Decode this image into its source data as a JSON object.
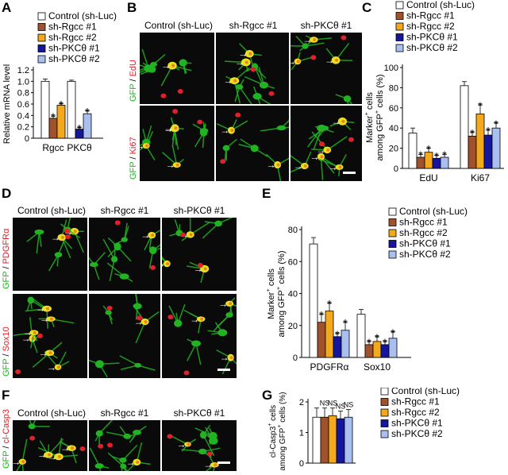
{
  "panel_letters": {
    "A": "A",
    "B": "B",
    "C": "C",
    "D": "D",
    "E": "E",
    "F": "F",
    "G": "G"
  },
  "colors": {
    "control": "#ffffff",
    "rgcc1": "#a0522d",
    "rgcc2": "#f4a81c",
    "pkc1": "#16169c",
    "pkc2": "#a8bff0",
    "gfp": "#22b322",
    "red": "#e0202a"
  },
  "legend": [
    "Control (sh-Luc)",
    "sh-Rgcc #1",
    "sh-Rgcc #2",
    "sh-PKCθ #1",
    "sh-PKCθ #2"
  ],
  "micrograph_titles": {
    "control": "Control (sh-Luc)",
    "rgcc1": "sh-Rgcc #1",
    "pkc1": "sh-PKCθ #1"
  },
  "row_labels": {
    "b_top": {
      "gfp": "GFP",
      "sep": " / ",
      "marker": "EdU"
    },
    "b_bottom": {
      "gfp": "GFP",
      "sep": " / ",
      "marker": "Ki67"
    },
    "d_top": {
      "gfp": "GFP",
      "sep": " / ",
      "marker": "PDGFRα"
    },
    "d_bottom": {
      "gfp": "GFP",
      "sep": " / ",
      "marker": "Sox10"
    },
    "f": {
      "gfp": "GFP",
      "sep": " / ",
      "marker": "cl-Casp3"
    }
  },
  "chart_data": [
    {
      "panel": "A",
      "type": "bar",
      "categories": [
        "Rgcc",
        "PKCθ"
      ],
      "ylabel": "Relative mRNA level",
      "ylim": [
        0,
        1.2
      ],
      "yticks": [
        "0",
        "0.2",
        "0.4",
        "0.6",
        "0.8",
        "1.0",
        "1.2"
      ],
      "series": [
        {
          "name": "Control (sh-Luc)",
          "values": [
            1.0,
            1.0
          ],
          "err": [
            0.04,
            0.02
          ],
          "sig": [
            "",
            ""
          ]
        },
        {
          "name": "sh-Rgcc #1",
          "values": [
            0.35,
            null
          ],
          "err": [
            0.04,
            null
          ],
          "sig": [
            "*",
            ""
          ]
        },
        {
          "name": "sh-Rgcc #2",
          "values": [
            0.58,
            null
          ],
          "err": [
            0.03,
            null
          ],
          "sig": [
            "*",
            ""
          ]
        },
        {
          "name": "sh-PKCθ #1",
          "values": [
            null,
            0.16
          ],
          "err": [
            null,
            0.03
          ],
          "sig": [
            "",
            "*"
          ]
        },
        {
          "name": "sh-PKCθ #2",
          "values": [
            null,
            0.43
          ],
          "err": [
            null,
            0.05
          ],
          "sig": [
            "",
            "*"
          ]
        }
      ]
    },
    {
      "panel": "C",
      "type": "bar",
      "categories": [
        "EdU",
        "Ki67"
      ],
      "ylabel": [
        "Marker",
        "cells",
        "among GFP",
        "cells (%)"
      ],
      "ylim": [
        0,
        100
      ],
      "yticks": [
        "0",
        "20",
        "40",
        "60",
        "80",
        "100"
      ],
      "series": [
        {
          "name": "Control (sh-Luc)",
          "values": [
            35,
            82
          ],
          "err": [
            5,
            4
          ],
          "sig": [
            "",
            ""
          ]
        },
        {
          "name": "sh-Rgcc #1",
          "values": [
            11,
            32
          ],
          "err": [
            3,
            4
          ],
          "sig": [
            "*",
            "*"
          ]
        },
        {
          "name": "sh-Rgcc #2",
          "values": [
            16,
            54
          ],
          "err": [
            4,
            9
          ],
          "sig": [
            "*",
            "*"
          ]
        },
        {
          "name": "sh-PKCθ #1",
          "values": [
            10,
            33
          ],
          "err": [
            3,
            5
          ],
          "sig": [
            "*",
            "*"
          ]
        },
        {
          "name": "sh-PKCθ #2",
          "values": [
            11,
            40
          ],
          "err": [
            3,
            5
          ],
          "sig": [
            "*",
            "*"
          ]
        }
      ]
    },
    {
      "panel": "E",
      "type": "bar",
      "categories": [
        "PDGFRα",
        "Sox10"
      ],
      "ylabel": [
        "Marker",
        "cells",
        "among GFP",
        "cells (%)"
      ],
      "ylim": [
        0,
        80
      ],
      "yticks": [
        "0",
        "20",
        "40",
        "60",
        "80"
      ],
      "series": [
        {
          "name": "Control (sh-Luc)",
          "values": [
            71,
            27
          ],
          "err": [
            4,
            3
          ],
          "sig": [
            "",
            ""
          ]
        },
        {
          "name": "sh-Rgcc #1",
          "values": [
            22,
            8
          ],
          "err": [
            5,
            2
          ],
          "sig": [
            "*",
            "*"
          ]
        },
        {
          "name": "sh-Rgcc #2",
          "values": [
            29,
            10
          ],
          "err": [
            5,
            3
          ],
          "sig": [
            "*",
            "*"
          ]
        },
        {
          "name": "sh-PKCθ #1",
          "values": [
            13,
            8
          ],
          "err": [
            2,
            2
          ],
          "sig": [
            "*",
            "*"
          ]
        },
        {
          "name": "sh-PKCθ #2",
          "values": [
            17,
            12
          ],
          "err": [
            5,
            4
          ],
          "sig": [
            "*",
            "*"
          ]
        }
      ]
    },
    {
      "panel": "G",
      "type": "bar",
      "categories": [
        ""
      ],
      "ylabel": [
        "cl-Casp3",
        "cells",
        "among GFP",
        "cells (%)"
      ],
      "ylim": [
        0,
        2
      ],
      "yticks": [
        "0",
        "1",
        "2"
      ],
      "series": [
        {
          "name": "Control (sh-Luc)",
          "values": [
            1.5
          ],
          "err": [
            0.3
          ],
          "sig": [
            ""
          ]
        },
        {
          "name": "sh-Rgcc #1",
          "values": [
            1.5
          ],
          "err": [
            0.3
          ],
          "sig": [
            "NS"
          ]
        },
        {
          "name": "sh-Rgcc #2",
          "values": [
            1.55
          ],
          "err": [
            0.25
          ],
          "sig": [
            "NS"
          ]
        },
        {
          "name": "sh-PKCθ #1",
          "values": [
            1.45
          ],
          "err": [
            0.25
          ],
          "sig": [
            "NS"
          ]
        },
        {
          "name": "sh-PKCθ #2",
          "values": [
            1.5
          ],
          "err": [
            0.25
          ],
          "sig": [
            "NS"
          ]
        }
      ]
    }
  ]
}
